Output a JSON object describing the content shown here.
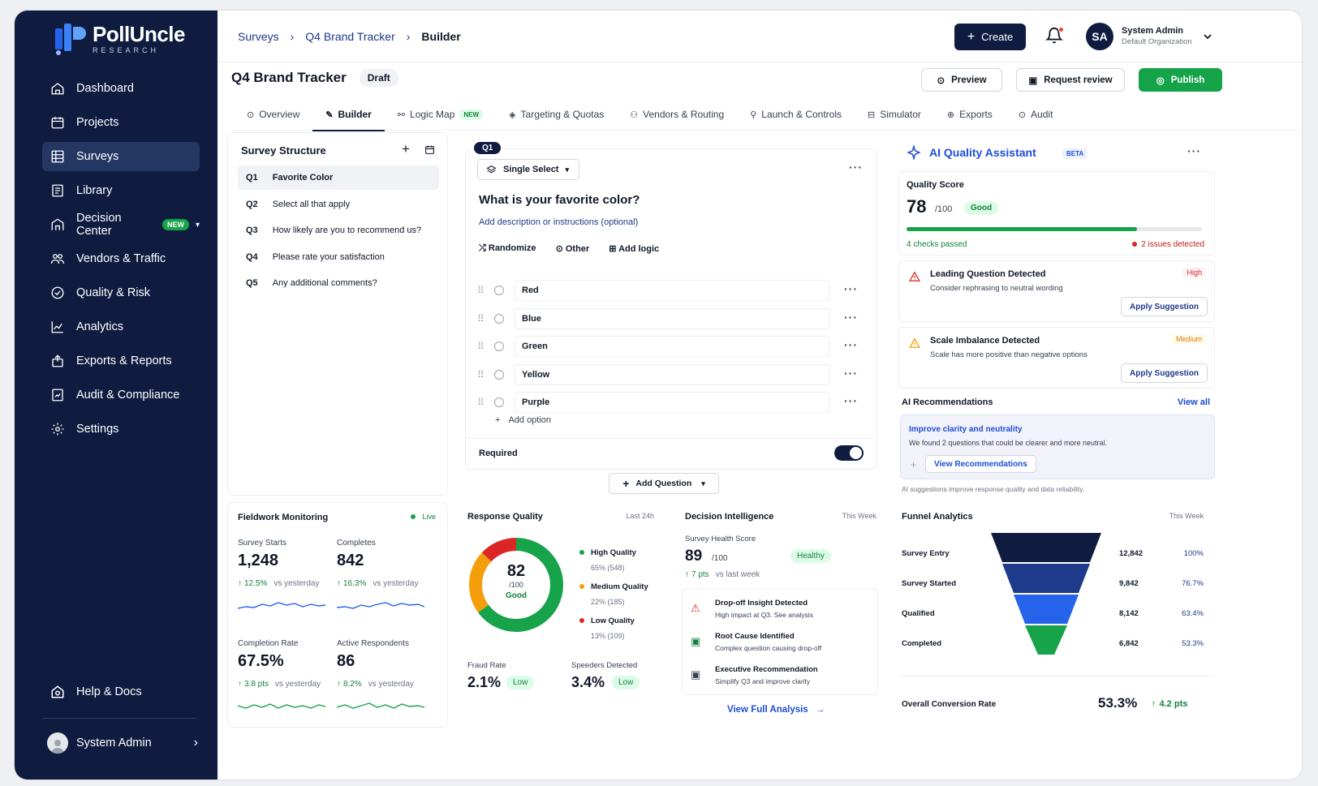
{
  "brand": {
    "name": "PollUncle",
    "sub": "RESEARCH"
  },
  "nav": [
    {
      "label": "Dashboard",
      "icon": "home-icon"
    },
    {
      "label": "Projects",
      "icon": "calendar-icon"
    },
    {
      "label": "Surveys",
      "icon": "grid-icon",
      "active": true
    },
    {
      "label": "Library",
      "icon": "library-icon"
    },
    {
      "label": "Decision Center",
      "icon": "building-icon",
      "badge": "NEW"
    },
    {
      "label": "Vendors & Traffic",
      "icon": "users-icon"
    },
    {
      "label": "Quality & Risk",
      "icon": "check-circle-icon"
    },
    {
      "label": "Analytics",
      "icon": "chart-icon"
    },
    {
      "label": "Exports & Reports",
      "icon": "export-icon"
    },
    {
      "label": "Audit & Compliance",
      "icon": "audit-icon"
    },
    {
      "label": "Settings",
      "icon": "gear-icon"
    }
  ],
  "help_label": "Help & Docs",
  "side_user": "System Admin",
  "crumbs": [
    "Surveys",
    "Q4 Brand Tracker",
    "Builder"
  ],
  "header": {
    "create": "Create",
    "user_initials": "SA",
    "user_name": "System Admin",
    "user_org": "Default Organization"
  },
  "title": "Q4 Brand Tracker",
  "status": "Draft",
  "actions": {
    "preview": "Preview",
    "review": "Request review",
    "publish": "Publish"
  },
  "tabs": [
    {
      "label": "Overview"
    },
    {
      "label": "Builder",
      "active": true
    },
    {
      "label": "Logic Map",
      "badge": "NEW"
    },
    {
      "label": "Targeting & Quotas"
    },
    {
      "label": "Vendors & Routing"
    },
    {
      "label": "Launch & Controls"
    },
    {
      "label": "Simulator"
    },
    {
      "label": "Exports"
    },
    {
      "label": "Audit"
    }
  ],
  "structure": {
    "title": "Survey Structure",
    "items": [
      {
        "id": "Q1",
        "text": "Favorite Color"
      },
      {
        "id": "Q2",
        "text": "Select all that apply"
      },
      {
        "id": "Q3",
        "text": "How likely are you to recommend us?"
      },
      {
        "id": "Q4",
        "text": "Please rate your satisfaction"
      },
      {
        "id": "Q5",
        "text": "Any additional comments?"
      }
    ]
  },
  "question": {
    "tag": "Q1",
    "type": "Single Select",
    "text": "What is your favorite color?",
    "desc": "Add description or instructions (optional)",
    "tools": [
      "Randomize",
      "Other",
      "Add logic"
    ],
    "options": [
      "Red",
      "Blue",
      "Green",
      "Yellow",
      "Purple"
    ],
    "add_option": "Add option",
    "required": "Required",
    "add_question": "Add Question"
  },
  "ai": {
    "title": "AI Quality Assistant",
    "beta": "BETA",
    "score_label": "Quality Score",
    "score": "78",
    "score_max": "/100",
    "score_tag": "Good",
    "progress": 0.78,
    "passed": "4 checks passed",
    "issues": "2 issues detected",
    "items": [
      {
        "title": "Leading Question Detected",
        "desc": "Consider rephrasing to neutral wording",
        "sev": "High",
        "action": "Apply Suggestion"
      },
      {
        "title": "Scale Imbalance Detected",
        "desc": "Scale has more positive than negative options",
        "sev": "Medium",
        "action": "Apply Suggestion"
      }
    ],
    "rec_title": "AI Recommendations",
    "view_all": "View all",
    "rec_head": "Improve clarity and neutrality",
    "rec_desc": "We found 2 questions that could be clearer and more neutral.",
    "rec_btn": "View Recommendations",
    "foot": "AI suggestions improve response quality and data reliability."
  },
  "fieldwork": {
    "title": "Fieldwork Monitoring",
    "live": "Live",
    "metrics": [
      {
        "label": "Survey Starts",
        "value": "1,248",
        "delta": "12.5%",
        "vs": "vs yesterday"
      },
      {
        "label": "Completes",
        "value": "842",
        "delta": "16.3%",
        "vs": "vs yesterday"
      },
      {
        "label": "Completion Rate",
        "value": "67.5%",
        "delta": "3.8 pts",
        "vs": "vs yesterday"
      },
      {
        "label": "Active Respondents",
        "value": "86",
        "delta": "8.2%",
        "vs": "vs yesterday"
      }
    ]
  },
  "quality": {
    "title": "Response Quality",
    "period": "Last 24h",
    "score": "82",
    "max": "/100",
    "tag": "Good",
    "legend": [
      {
        "label": "High Quality",
        "value": "65% (548)",
        "color": "#16a34a",
        "pct": 65
      },
      {
        "label": "Medium Quality",
        "value": "22% (185)",
        "color": "#f59e0b",
        "pct": 22
      },
      {
        "label": "Low Quality",
        "value": "13% (109)",
        "color": "#dc2626",
        "pct": 13
      }
    ],
    "fraud_label": "Fraud Rate",
    "fraud": "2.1%",
    "fraud_tag": "Low",
    "speed_label": "Speeders Detected",
    "speed": "3.4%",
    "speed_tag": "Low"
  },
  "decision": {
    "title": "Decision Intelligence",
    "period": "This Week",
    "health_label": "Survey Health Score",
    "health": "89",
    "max": "/100",
    "tag": "Healthy",
    "delta": "7 pts",
    "vs": "vs last week",
    "items": [
      {
        "title": "Drop-off Insight Detected",
        "desc": "High impact at Q3. See analysis"
      },
      {
        "title": "Root Cause Identified",
        "desc": "Complex question causing drop-off"
      },
      {
        "title": "Executive Recommendation",
        "desc": "Simplify Q3 and improve clarity"
      }
    ],
    "link": "View Full Analysis"
  },
  "funnel": {
    "title": "Funnel Analytics",
    "period": "This Week",
    "rows": [
      {
        "label": "Survey Entry",
        "count": "12,842",
        "pct": "100%"
      },
      {
        "label": "Survey Started",
        "count": "9,842",
        "pct": "76.7%"
      },
      {
        "label": "Qualified",
        "count": "8,142",
        "pct": "63.4%"
      },
      {
        "label": "Completed",
        "count": "6,842",
        "pct": "53.3%"
      }
    ],
    "conv_label": "Overall Conversion Rate",
    "conv": "53.3%",
    "conv_delta": "4.2 pts"
  }
}
